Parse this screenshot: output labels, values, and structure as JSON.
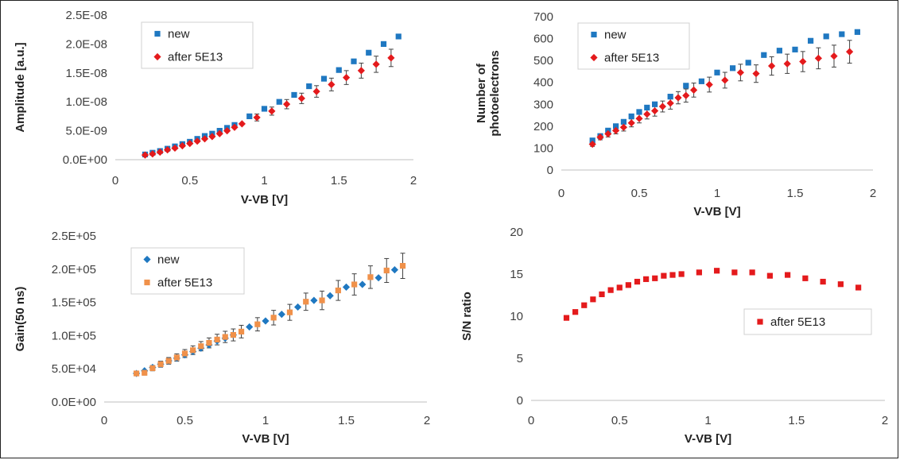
{
  "colors": {
    "blue": "#1f78c1",
    "red": "#e41a1c",
    "orange": "#f0914a",
    "axis": "#bfbfbf",
    "errorbar": "#404040"
  },
  "chart_data": [
    {
      "type": "scatter",
      "xlabel": "V-VB [V]",
      "ylabel": "Amplitude [a.u.]",
      "xlim": [
        0,
        2
      ],
      "ylim": [
        0,
        2.5e-08
      ],
      "x_ticks": [
        "0",
        "0.5",
        "1",
        "1.5",
        "2"
      ],
      "y_ticks": [
        "0.0E+00",
        "5.0E-09",
        "1.0E-08",
        "1.5E-08",
        "2.0E-08",
        "2.5E-08"
      ],
      "legend": "top-left",
      "series": [
        {
          "name": "new",
          "marker": "square",
          "color": "#1f78c1",
          "x": [
            0.2,
            0.25,
            0.3,
            0.35,
            0.4,
            0.45,
            0.5,
            0.55,
            0.6,
            0.65,
            0.7,
            0.75,
            0.8,
            0.9,
            1.0,
            1.1,
            1.2,
            1.3,
            1.4,
            1.5,
            1.6,
            1.7,
            1.8,
            1.9
          ],
          "y": [
            9e-10,
            1.2e-09,
            1.5e-09,
            1.9e-09,
            2.3e-09,
            2.7e-09,
            3.1e-09,
            3.6e-09,
            4.1e-09,
            4.5e-09,
            5e-09,
            5.5e-09,
            6e-09,
            7.5e-09,
            8.8e-09,
            1e-08,
            1.12e-08,
            1.27e-08,
            1.4e-08,
            1.55e-08,
            1.7e-08,
            1.85e-08,
            2e-08,
            2.13e-08
          ]
        },
        {
          "name": "after 5E13",
          "marker": "diamond",
          "color": "#e41a1c",
          "x": [
            0.2,
            0.25,
            0.3,
            0.35,
            0.4,
            0.45,
            0.5,
            0.55,
            0.6,
            0.65,
            0.7,
            0.75,
            0.8,
            0.85,
            0.95,
            1.05,
            1.15,
            1.25,
            1.35,
            1.45,
            1.55,
            1.65,
            1.75,
            1.85
          ],
          "y": [
            8e-10,
            1e-09,
            1.3e-09,
            1.7e-09,
            2e-09,
            2.4e-09,
            2.8e-09,
            3.2e-09,
            3.6e-09,
            4e-09,
            4.5e-09,
            5e-09,
            5.6e-09,
            6.2e-09,
            7.3e-09,
            8.4e-09,
            9.6e-09,
            1.06e-08,
            1.18e-08,
            1.3e-08,
            1.42e-08,
            1.54e-08,
            1.65e-08,
            1.76e-08
          ],
          "err": [
            0,
            0,
            0,
            0,
            0,
            0,
            0,
            0,
            0,
            0,
            0,
            0,
            0,
            0,
            6e-10,
            7e-10,
            8e-10,
            9e-10,
            1e-09,
            1.1e-09,
            1.2e-09,
            1.3e-09,
            1.4e-09,
            1.5e-09
          ]
        }
      ]
    },
    {
      "type": "scatter",
      "xlabel": "V-VB [V]",
      "ylabel": "Number of photoelectrons",
      "ylabel_lines": [
        "Number of",
        "photoelectrons"
      ],
      "xlim": [
        0,
        2
      ],
      "ylim": [
        0,
        700
      ],
      "x_ticks": [
        "0",
        "0.5",
        "1",
        "1.5",
        "2"
      ],
      "y_ticks": [
        "0",
        "100",
        "200",
        "300",
        "400",
        "500",
        "600",
        "700"
      ],
      "legend": "top-left",
      "series": [
        {
          "name": "new",
          "marker": "square",
          "color": "#1f78c1",
          "x": [
            0.2,
            0.25,
            0.3,
            0.35,
            0.4,
            0.45,
            0.5,
            0.55,
            0.6,
            0.7,
            0.8,
            0.9,
            1.0,
            1.1,
            1.2,
            1.3,
            1.4,
            1.5,
            1.6,
            1.7,
            1.8,
            1.9
          ],
          "y": [
            135,
            155,
            180,
            200,
            220,
            245,
            265,
            285,
            300,
            335,
            385,
            405,
            445,
            465,
            490,
            525,
            545,
            550,
            590,
            610,
            620,
            630
          ]
        },
        {
          "name": "after 5E13",
          "marker": "diamond",
          "color": "#e41a1c",
          "x": [
            0.2,
            0.25,
            0.3,
            0.35,
            0.4,
            0.45,
            0.5,
            0.55,
            0.6,
            0.65,
            0.7,
            0.75,
            0.8,
            0.85,
            0.95,
            1.05,
            1.15,
            1.25,
            1.35,
            1.45,
            1.55,
            1.65,
            1.75,
            1.85
          ],
          "y": [
            118,
            150,
            165,
            180,
            195,
            215,
            235,
            255,
            270,
            290,
            305,
            330,
            340,
            365,
            390,
            410,
            445,
            440,
            475,
            485,
            495,
            510,
            520,
            540
          ],
          "err": [
            10,
            12,
            14,
            15,
            17,
            18,
            20,
            22,
            24,
            25,
            27,
            28,
            30,
            32,
            34,
            36,
            38,
            40,
            42,
            44,
            46,
            48,
            50,
            52
          ]
        }
      ]
    },
    {
      "type": "scatter",
      "xlabel": "V-VB [V]",
      "ylabel": "Gain(50 ns)",
      "xlim": [
        0,
        2
      ],
      "ylim": [
        0,
        250000
      ],
      "x_ticks": [
        "0",
        "0.5",
        "1",
        "1.5",
        "2"
      ],
      "y_ticks": [
        "0.0E+00",
        "5.0E+04",
        "1.0E+05",
        "1.5E+05",
        "2.0E+05",
        "2.5E+05"
      ],
      "legend": "top-left",
      "series": [
        {
          "name": "new",
          "marker": "diamond",
          "color": "#1f78c1",
          "x": [
            0.2,
            0.25,
            0.3,
            0.35,
            0.4,
            0.45,
            0.5,
            0.55,
            0.6,
            0.65,
            0.7,
            0.75,
            0.8,
            0.9,
            1.0,
            1.1,
            1.2,
            1.3,
            1.4,
            1.5,
            1.6,
            1.7,
            1.8
          ],
          "y": [
            43000,
            47000,
            52000,
            57000,
            62000,
            66000,
            71000,
            76000,
            81000,
            86000,
            92000,
            96000,
            101000,
            113000,
            122000,
            132000,
            143000,
            153000,
            160000,
            173000,
            177000,
            187000,
            199000
          ]
        },
        {
          "name": "after 5E13",
          "marker": "square",
          "color": "#f0914a",
          "x": [
            0.2,
            0.25,
            0.3,
            0.35,
            0.4,
            0.45,
            0.5,
            0.55,
            0.6,
            0.65,
            0.7,
            0.75,
            0.8,
            0.85,
            0.95,
            1.05,
            1.15,
            1.25,
            1.35,
            1.45,
            1.55,
            1.65,
            1.75,
            1.85
          ],
          "y": [
            43000,
            44000,
            51000,
            57000,
            62000,
            67000,
            73000,
            78000,
            84000,
            89000,
            94000,
            98000,
            101000,
            106000,
            117000,
            127000,
            135000,
            151000,
            153000,
            168000,
            177000,
            188000,
            198000,
            205000
          ],
          "err": [
            3000,
            3500,
            4000,
            4500,
            5000,
            5500,
            6000,
            6500,
            7000,
            7500,
            8000,
            8500,
            9000,
            9500,
            10000,
            11000,
            12000,
            13000,
            14000,
            15000,
            16000,
            17000,
            18000,
            19000
          ]
        }
      ]
    },
    {
      "type": "scatter",
      "xlabel": "V-VB [V]",
      "ylabel": "S/N ratio",
      "xlim": [
        0,
        2
      ],
      "ylim": [
        0,
        20
      ],
      "x_ticks": [
        "0",
        "0.5",
        "1",
        "1.5",
        "2"
      ],
      "y_ticks": [
        "0",
        "5",
        "10",
        "15",
        "20"
      ],
      "legend": "right",
      "series": [
        {
          "name": "after 5E13",
          "marker": "square",
          "color": "#e41a1c",
          "x": [
            0.2,
            0.25,
            0.3,
            0.35,
            0.4,
            0.45,
            0.5,
            0.55,
            0.6,
            0.65,
            0.7,
            0.75,
            0.8,
            0.85,
            0.95,
            1.05,
            1.15,
            1.25,
            1.35,
            1.45,
            1.55,
            1.65,
            1.75,
            1.85
          ],
          "y": [
            9.8,
            10.5,
            11.3,
            12.0,
            12.6,
            13.1,
            13.4,
            13.7,
            14.1,
            14.4,
            14.5,
            14.8,
            14.9,
            15.0,
            15.2,
            15.4,
            15.2,
            15.2,
            14.8,
            14.9,
            14.5,
            14.1,
            13.8,
            13.4
          ]
        }
      ]
    }
  ]
}
